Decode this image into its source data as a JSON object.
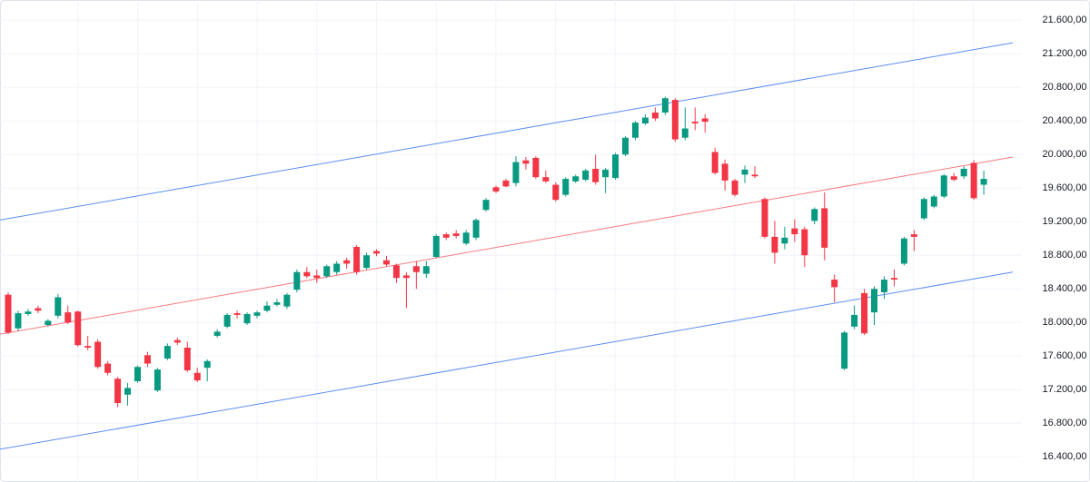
{
  "chart_data": {
    "type": "candlestick",
    "up_color": "#089981",
    "down_color": "#f23645",
    "open": [
      18330,
      17930,
      18100,
      18170,
      17970,
      18080,
      18120,
      18130,
      17720,
      17770,
      17510,
      17330,
      17140,
      17300,
      17610,
      17190,
      17570,
      17790,
      17700,
      17400,
      17460,
      17840,
      17950,
      18110,
      17990,
      18080,
      18140,
      18210,
      18190,
      18390,
      18600,
      18560,
      18550,
      18600,
      18740,
      18900,
      18650,
      18850,
      18740,
      18680,
      18560,
      18670,
      18580,
      18780,
      19050,
      19060,
      18940,
      19010,
      19340,
      19610,
      19690,
      19660,
      19930,
      19960,
      19730,
      19640,
      19520,
      19680,
      19700,
      19830,
      19730,
      19720,
      20000,
      20200,
      20370,
      20500,
      20500,
      20650,
      20200,
      20390,
      20430,
      20030,
      19890,
      19690,
      19760,
      19760,
      19470,
      19020,
      18940,
      19120,
      19110,
      19210,
      19360,
      18510,
      17450,
      17950,
      18350,
      18120,
      18360,
      18530,
      18700,
      19050,
      19240,
      19380,
      19500,
      19740,
      19740,
      19900,
      19640
    ],
    "high": [
      18360,
      18140,
      18160,
      18200,
      18040,
      18340,
      18200,
      18140,
      17840,
      17800,
      17540,
      17350,
      17280,
      17490,
      17650,
      17460,
      17750,
      17820,
      17770,
      17460,
      17560,
      17920,
      18110,
      18140,
      18120,
      18140,
      18250,
      18280,
      18350,
      18630,
      18660,
      18630,
      18690,
      18730,
      18770,
      18920,
      18830,
      18870,
      18790,
      18700,
      18600,
      18730,
      18730,
      19050,
      19070,
      19100,
      19100,
      19240,
      19480,
      19630,
      19710,
      19980,
      19970,
      19980,
      19810,
      19670,
      19730,
      19760,
      19830,
      20000,
      19840,
      20020,
      20220,
      20400,
      20480,
      20560,
      20690,
      20670,
      20560,
      20560,
      20480,
      20080,
      19940,
      19710,
      19870,
      19860,
      19490,
      19210,
      19140,
      19230,
      19140,
      19370,
      19550,
      18570,
      17900,
      18200,
      18400,
      18430,
      18550,
      18630,
      19020,
      19100,
      19490,
      19520,
      19770,
      19780,
      19860,
      19930,
      19810
    ],
    "low": [
      17860,
      17900,
      18080,
      18110,
      17950,
      18050,
      17980,
      17710,
      17670,
      17450,
      17370,
      16990,
      17010,
      17280,
      17470,
      17170,
      17550,
      17730,
      17410,
      17290,
      17300,
      17820,
      17930,
      18050,
      17970,
      18050,
      18120,
      18190,
      18160,
      18360,
      18530,
      18470,
      18530,
      18570,
      18640,
      18570,
      18630,
      18790,
      18670,
      18470,
      18170,
      18400,
      18530,
      18770,
      18980,
      19000,
      18920,
      18980,
      19320,
      19540,
      19610,
      19620,
      19820,
      19710,
      19660,
      19440,
      19500,
      19660,
      19680,
      19640,
      19540,
      19700,
      19980,
      20170,
      20350,
      20400,
      20470,
      20150,
      20170,
      20290,
      20260,
      19760,
      19570,
      19500,
      19660,
      19720,
      19000,
      18700,
      18870,
      18960,
      18660,
      19170,
      18740,
      18240,
      17430,
      17920,
      17850,
      17970,
      18280,
      18430,
      18680,
      18850,
      19220,
      19360,
      19480,
      19680,
      19710,
      19460,
      19520
    ],
    "close": [
      17880,
      18110,
      18130,
      18140,
      18020,
      18300,
      18000,
      17730,
      17700,
      17470,
      17400,
      17040,
      17220,
      17470,
      17510,
      17440,
      17720,
      17760,
      17430,
      17310,
      17540,
      17890,
      18090,
      18090,
      18100,
      18120,
      18200,
      18240,
      18330,
      18600,
      18550,
      18530,
      18670,
      18700,
      18700,
      18600,
      18800,
      18820,
      18690,
      18530,
      18530,
      18600,
      18670,
      19030,
      19010,
      19030,
      19070,
      19220,
      19460,
      19560,
      19620,
      19910,
      19890,
      19730,
      19680,
      19460,
      19710,
      19740,
      19810,
      19670,
      19820,
      20000,
      20200,
      20380,
      20440,
      20430,
      20670,
      20180,
      20310,
      20370,
      20390,
      19780,
      19690,
      19520,
      19820,
      19740,
      19020,
      18830,
      19010,
      19050,
      18800,
      19350,
      18890,
      18420,
      17880,
      18090,
      17870,
      18400,
      18510,
      18510,
      19000,
      19020,
      19470,
      19500,
      19750,
      19700,
      19830,
      19480,
      19710
    ],
    "channel": [
      {
        "color": "#5b8def",
        "values": [
          19220,
          21330
        ]
      },
      {
        "color": "#f77c80",
        "values": [
          17860,
          19970
        ]
      },
      {
        "color": "#5b8def",
        "values": [
          16490,
          18600
        ]
      }
    ],
    "ylim": [
      16100,
      21840
    ],
    "yticks": [
      {
        "value": 16400,
        "label": "16.400,00"
      },
      {
        "value": 16800,
        "label": "16.800,00"
      },
      {
        "value": 17200,
        "label": "17.200,00"
      },
      {
        "value": 17600,
        "label": "17.600,00"
      },
      {
        "value": 18000,
        "label": "18.000,00"
      },
      {
        "value": 18400,
        "label": "18.400,00"
      },
      {
        "value": 18800,
        "label": "18.800,00"
      },
      {
        "value": 19200,
        "label": "19.200,00"
      },
      {
        "value": 19600,
        "label": "19.600,00"
      },
      {
        "value": 20000,
        "label": "20.000,00"
      },
      {
        "value": 20400,
        "label": "20.400,00"
      },
      {
        "value": 20800,
        "label": "20.800,00"
      },
      {
        "value": 21200,
        "label": "21.200,00"
      },
      {
        "value": 21600,
        "label": "21.600,00"
      }
    ],
    "grid": true
  }
}
